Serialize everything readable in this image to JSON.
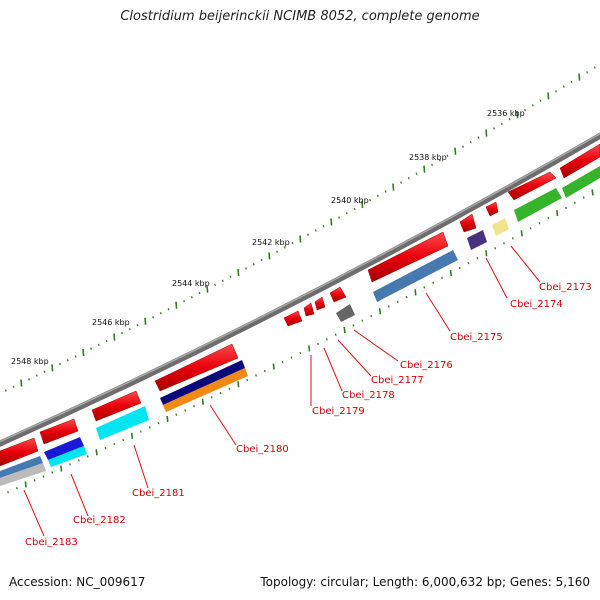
{
  "title": "Clostridium beijerinckii NCIMB 8052, complete genome",
  "footer": {
    "accession": "Accession: NC_009617",
    "summary": "Topology: circular; Length: 6,000,632 bp; Genes: 5,160"
  },
  "scale_labels": [
    "2536 kbp",
    "2538 kbp",
    "2540 kbp",
    "2542 kbp",
    "2544 kbp",
    "2546 kbp",
    "2548 kbp"
  ],
  "gene_labels": [
    "Cbei_2173",
    "Cbei_2174",
    "Cbei_2175",
    "Cbei_2176",
    "Cbei_2177",
    "Cbei_2178",
    "Cbei_2179",
    "Cbei_2180",
    "Cbei_2181",
    "Cbei_2182",
    "Cbei_2183"
  ],
  "colors": {
    "gene_red": "#e8000b",
    "backbone": "#808080",
    "tick_green": "#2e7d1a",
    "label_red": "#d40000"
  }
}
